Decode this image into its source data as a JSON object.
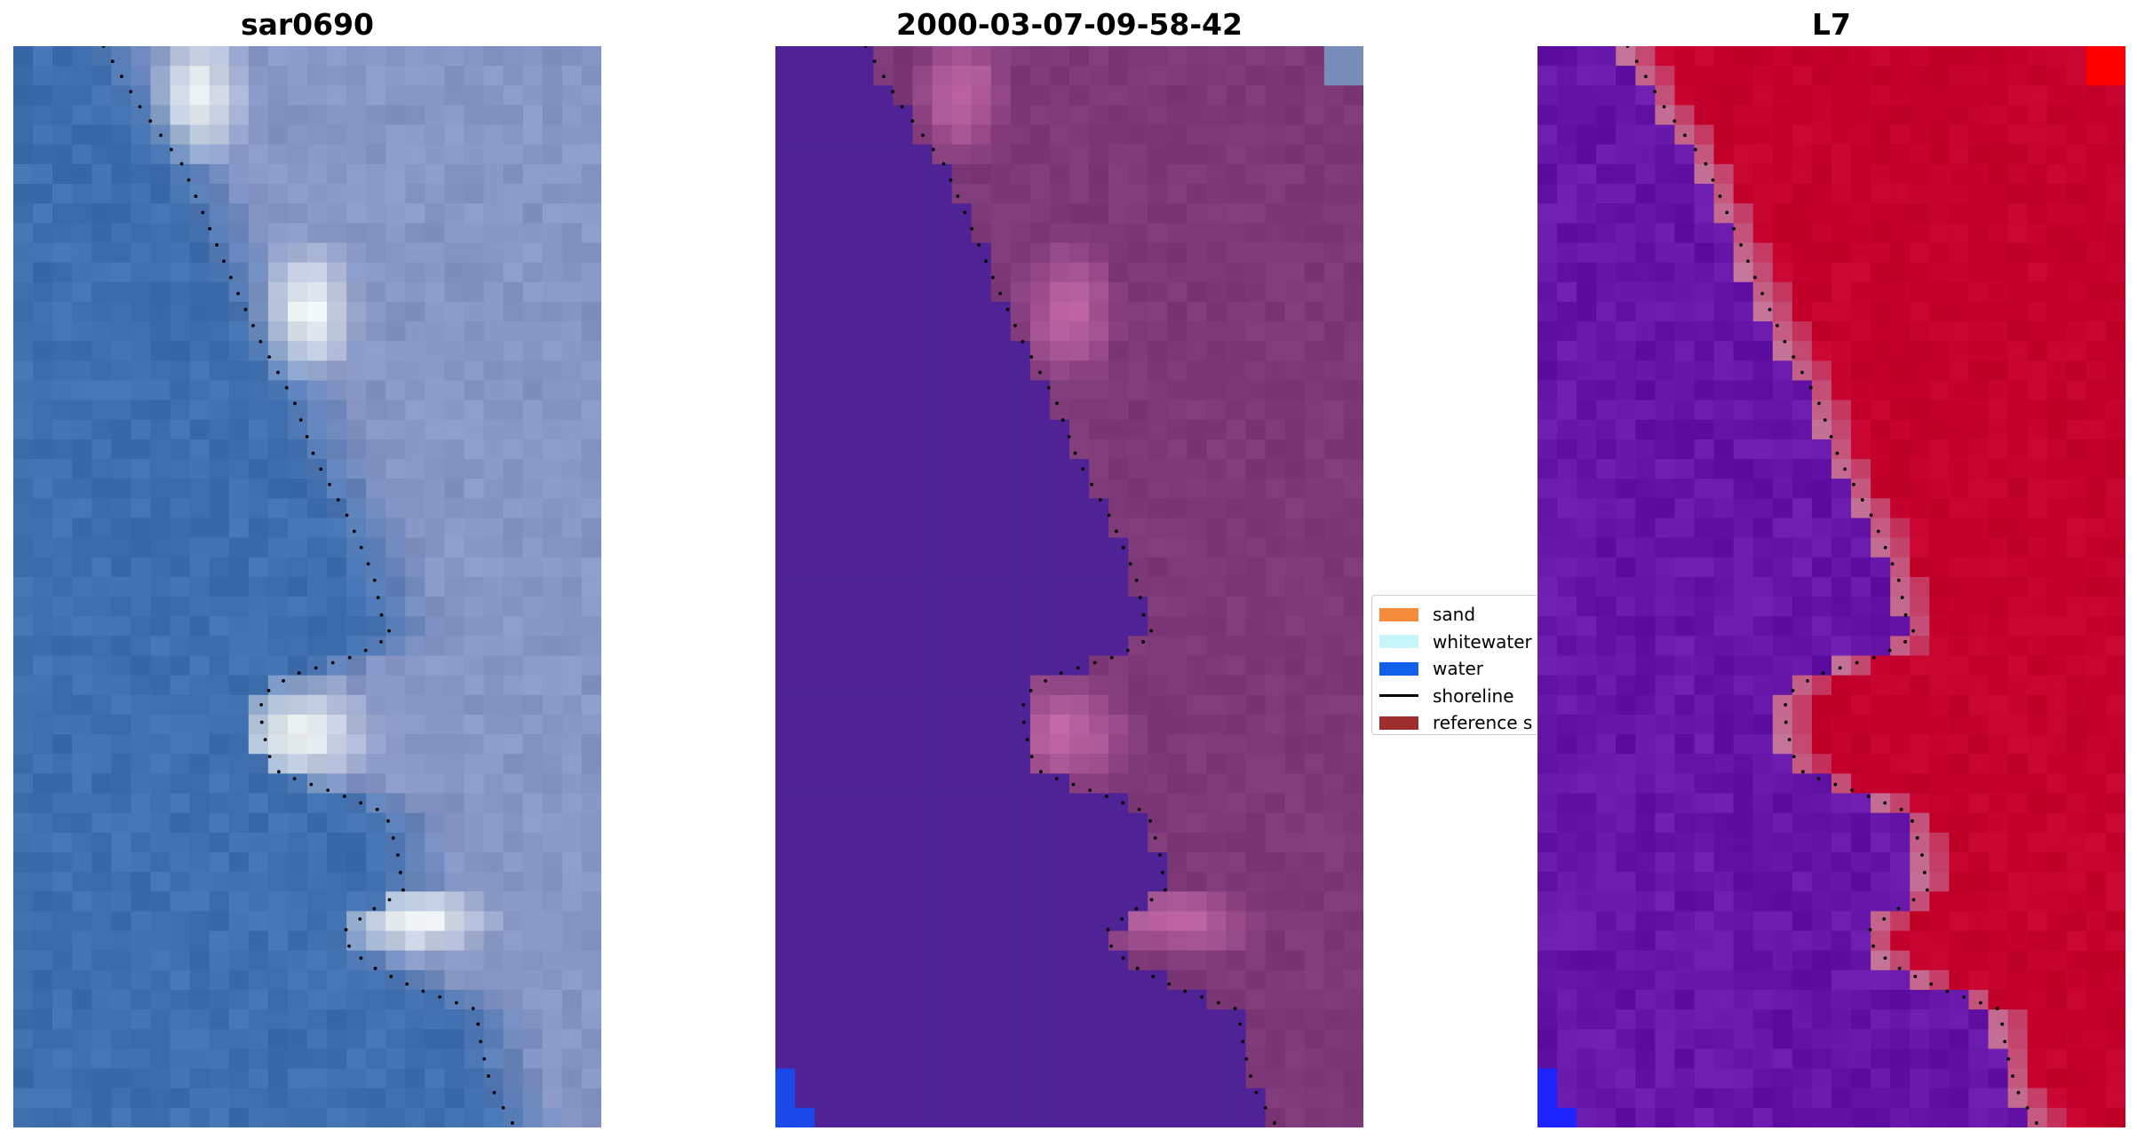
{
  "panels": [
    {
      "title": "sar0690",
      "variant": "rgb"
    },
    {
      "title": "2000-03-07-09-58-42",
      "variant": "classified"
    },
    {
      "title": "L7",
      "variant": "index"
    }
  ],
  "legend": {
    "items": [
      {
        "label": "sand",
        "color": "#f58c3c",
        "kind": "patch"
      },
      {
        "label": "whitewater",
        "color": "#c7f7fb",
        "kind": "patch"
      },
      {
        "label": "water",
        "color": "#1060ea",
        "kind": "patch"
      },
      {
        "label": "shoreline",
        "color": "#000000",
        "kind": "line"
      },
      {
        "label": "reference s",
        "color": "#9e2d2d",
        "kind": "patch"
      }
    ]
  },
  "colors": {
    "rgb_water": "#3f6fae",
    "rgb_land": "#8796c4",
    "rgb_foam": "#f0f4f4",
    "class_water": "#4f2396",
    "class_land": "#7d3878",
    "class_foam": "#c56aa8",
    "class_blue": "#1b48e8",
    "index_water": "#6515a8",
    "index_land": "#c4002c",
    "index_edge": "#c4779d",
    "index_red": "#ff0000",
    "index_blue": "#1e24ff",
    "shoreline": "#000000"
  }
}
